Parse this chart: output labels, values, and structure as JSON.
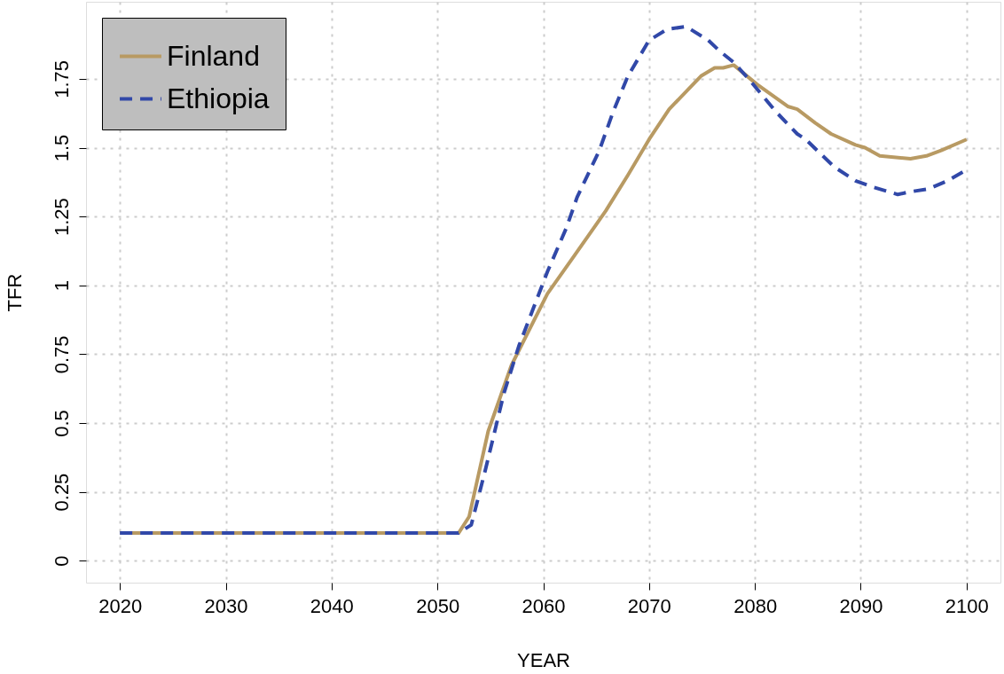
{
  "chart_data": {
    "type": "line",
    "xlabel": "YEAR",
    "ylabel": "TFR",
    "xlim": [
      2016.8,
      2103.2
    ],
    "ylim": [
      -0.08,
      2.03
    ],
    "xticks": [
      2020,
      2030,
      2040,
      2050,
      2060,
      2070,
      2080,
      2090,
      2100
    ],
    "yticks": [
      0,
      0.25,
      0.5,
      0.75,
      1,
      1.25,
      1.5,
      1.75
    ],
    "grid": true,
    "legend": "top left",
    "marker": "none",
    "series": [
      {
        "name": "Finland",
        "color": "#b89a63",
        "line_style": "solid",
        "x": [
          2020,
          2052,
          2053,
          2054.8,
          2057,
          2060.4,
          2062.8,
          2065.9,
          2068,
          2070,
          2071.9,
          2074.9,
          2076.2,
          2077,
          2078,
          2080.2,
          2083.1,
          2084,
          2085.7,
          2087.2,
          2089.5,
          2090.4,
          2091.8,
          2094.7,
          2096.2,
          2097.6,
          2100
        ],
        "values": [
          0.1,
          0.1,
          0.16,
          0.47,
          0.71,
          0.97,
          1.1,
          1.27,
          1.4,
          1.53,
          1.64,
          1.76,
          1.79,
          1.79,
          1.8,
          1.73,
          1.65,
          1.64,
          1.59,
          1.55,
          1.51,
          1.5,
          1.47,
          1.46,
          1.47,
          1.49,
          1.53
        ]
      },
      {
        "name": "Ethiopia",
        "color": "#3148a8",
        "line_style": "dashed",
        "x": [
          2020,
          2052,
          2053.2,
          2054.6,
          2056.3,
          2057.7,
          2059.1,
          2060.4,
          2062.2,
          2063.2,
          2065.3,
          2066.6,
          2068,
          2070,
          2071.7,
          2073.5,
          2075.6,
          2076.7,
          2078,
          2079.4,
          2082,
          2084,
          2084.8,
          2087.5,
          2089.5,
          2090.9,
          2093.5,
          2094.7,
          2096.4,
          2098.2,
          2100
        ],
        "values": [
          0.1,
          0.1,
          0.13,
          0.34,
          0.61,
          0.78,
          0.92,
          1.05,
          1.21,
          1.32,
          1.49,
          1.63,
          1.76,
          1.89,
          1.93,
          1.94,
          1.89,
          1.85,
          1.81,
          1.75,
          1.63,
          1.55,
          1.53,
          1.43,
          1.38,
          1.36,
          1.33,
          1.34,
          1.35,
          1.38,
          1.42
        ]
      }
    ]
  }
}
